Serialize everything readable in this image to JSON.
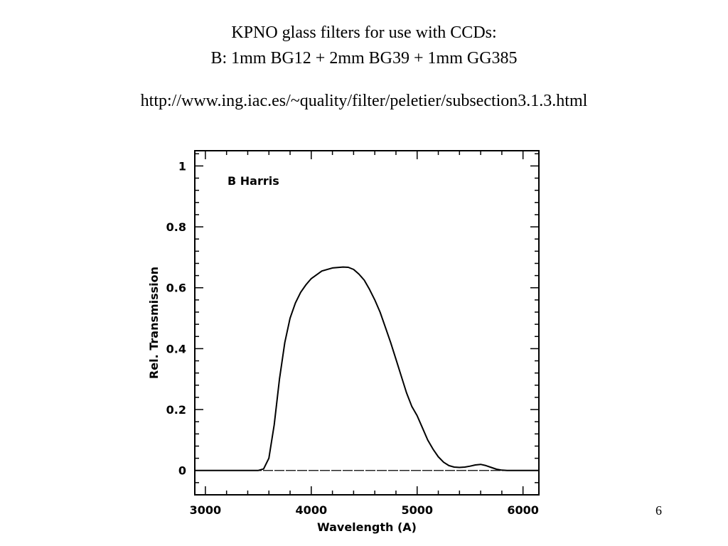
{
  "slide": {
    "title_line1": "KPNO glass filters for use with CCDs:",
    "title_line2": "B: 1mm BG12 + 2mm BG39 + 1mm GG385",
    "url": "http://www.ing.iac.es/~quality/filter/peletier/subsection3.1.3.html",
    "page_number": "6"
  },
  "chart_data": {
    "type": "line",
    "title": "",
    "annotation": "B Harris",
    "xlabel": "Wavelength (A)",
    "ylabel": "Rel. Transmission",
    "xlim": [
      2900,
      6150
    ],
    "ylim": [
      -0.08,
      1.05
    ],
    "xticks": [
      3000,
      4000,
      5000,
      6000
    ],
    "yticks": [
      0,
      0.2,
      0.4,
      0.6,
      0.8,
      1
    ],
    "ytick_labels": [
      "0",
      "0.2",
      "0.4",
      "0.6",
      "0.8",
      "1"
    ],
    "grid": false,
    "baseline": 0,
    "series": [
      {
        "x": [
          2900,
          3500,
          3550,
          3600,
          3650,
          3700,
          3750,
          3800,
          3850,
          3900,
          3950,
          4000,
          4100,
          4200,
          4300,
          4350,
          4400,
          4450,
          4500,
          4550,
          4600,
          4650,
          4700,
          4750,
          4800,
          4850,
          4900,
          4950,
          5000,
          5050,
          5100,
          5150,
          5200,
          5250,
          5300,
          5350,
          5400,
          5450,
          5500,
          5550,
          5600,
          5650,
          5700,
          5750,
          5800,
          5850,
          6150
        ],
        "y": [
          0,
          0,
          0.005,
          0.04,
          0.15,
          0.3,
          0.42,
          0.5,
          0.55,
          0.585,
          0.61,
          0.63,
          0.655,
          0.665,
          0.668,
          0.667,
          0.66,
          0.645,
          0.625,
          0.595,
          0.56,
          0.52,
          0.47,
          0.42,
          0.365,
          0.31,
          0.255,
          0.21,
          0.18,
          0.14,
          0.1,
          0.07,
          0.045,
          0.027,
          0.016,
          0.011,
          0.01,
          0.011,
          0.014,
          0.018,
          0.02,
          0.016,
          0.01,
          0.004,
          0.001,
          0,
          0
        ]
      }
    ]
  }
}
